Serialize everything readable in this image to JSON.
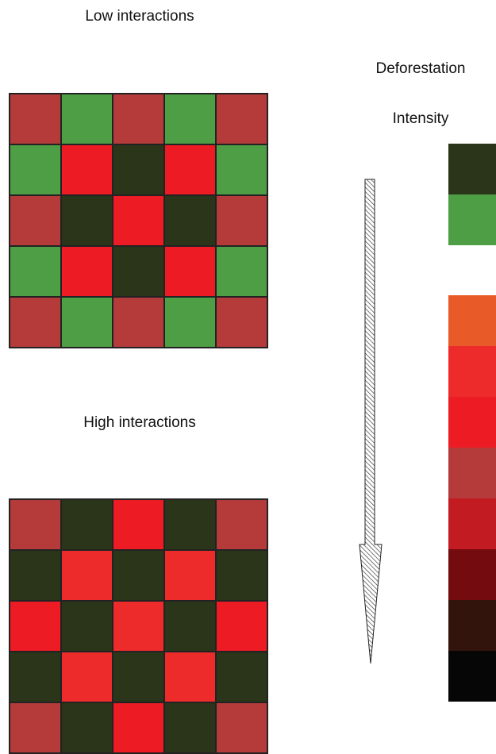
{
  "labels": {
    "low_interactions": "Low interactions",
    "high_interactions": "High interactions",
    "legend_title_line1": "Deforestation",
    "legend_title_line2": "Intensity"
  },
  "colors": {
    "dark_forest": "#2b3519",
    "green": "#4e9e45",
    "brick": "#b53b3b",
    "red": "#ed1c24",
    "bright_red": "#ee2b2b",
    "orange": "#e85a28",
    "crimson": "#c21b22",
    "maroon": "#730b0f",
    "dark_brown": "#33140c",
    "black": "#060606"
  },
  "low_grid": [
    [
      "brick",
      "green",
      "brick",
      "green",
      "brick"
    ],
    [
      "green",
      "red",
      "dark_forest",
      "red",
      "green"
    ],
    [
      "brick",
      "dark_forest",
      "red",
      "dark_forest",
      "brick"
    ],
    [
      "green",
      "red",
      "dark_forest",
      "red",
      "green"
    ],
    [
      "brick",
      "green",
      "brick",
      "green",
      "brick"
    ]
  ],
  "high_grid": [
    [
      "brick",
      "dark_forest",
      "red",
      "dark_forest",
      "brick"
    ],
    [
      "dark_forest",
      "bright_red",
      "dark_forest",
      "bright_red",
      "dark_forest"
    ],
    [
      "red",
      "dark_forest",
      "bright_red",
      "dark_forest",
      "red"
    ],
    [
      "dark_forest",
      "bright_red",
      "dark_forest",
      "bright_red",
      "dark_forest"
    ],
    [
      "brick",
      "dark_forest",
      "red",
      "dark_forest",
      "brick"
    ]
  ],
  "legend": {
    "top_group": [
      "dark_forest",
      "green"
    ],
    "bottom_group": [
      "orange",
      "bright_red",
      "red",
      "brick",
      "crimson",
      "maroon",
      "dark_brown",
      "black"
    ]
  },
  "arrow": {
    "direction": "down",
    "fill_pattern": "diagonal-hatch"
  }
}
